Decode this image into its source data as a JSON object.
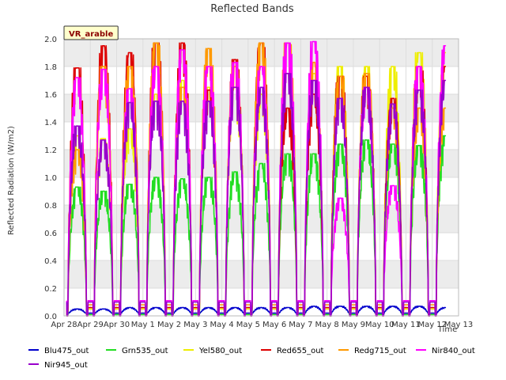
{
  "chart_data": {
    "type": "line",
    "title": "Reflected Bands",
    "xlabel": "Time",
    "ylabel": "Reflected Radiation (W/m2)",
    "ylim": [
      0,
      2.0
    ],
    "xlim": [
      0,
      15
    ],
    "yticks": [
      "0.0",
      "0.2",
      "0.4",
      "0.6",
      "0.8",
      "1.0",
      "1.2",
      "1.4",
      "1.6",
      "1.8",
      "2.0"
    ],
    "xticks": [
      "Apr 28",
      "Apr 29",
      "Apr 30",
      "May 1",
      "May 2",
      "May 3",
      "May 4",
      "May 5",
      "May 6",
      "May 7",
      "May 8",
      "May 9",
      "May 10",
      "May 11",
      "May 12",
      "May 13"
    ],
    "grid": true,
    "legend_position": "bottom",
    "badge": "VR_arable",
    "x_days": [
      0.5,
      1.5,
      2.5,
      3.5,
      4.5,
      5.5,
      6.5,
      7.5,
      8.5,
      9.5,
      10.5,
      11.5,
      12.5,
      13.5,
      14.5
    ],
    "night_values": {
      "Blu475_out": 0.02,
      "Grn535_out": 0.01,
      "Yel580_out": 0.05,
      "Red655_out": 0.06,
      "Redg715_out": 0.08,
      "Nir840_out": 0.11,
      "Nir945_out": 0.1
    },
    "series": [
      {
        "name": "Blu475_out",
        "color": "#0000cc",
        "values": [
          0.05,
          0.05,
          0.06,
          0.06,
          0.06,
          0.06,
          0.06,
          0.06,
          0.06,
          0.07,
          0.07,
          0.07,
          0.07,
          0.07,
          0.06
        ]
      },
      {
        "name": "Grn535_out",
        "color": "#22dd22",
        "values": [
          0.93,
          0.9,
          0.95,
          1.0,
          0.99,
          1.0,
          1.04,
          1.1,
          1.17,
          1.17,
          1.24,
          1.27,
          1.24,
          1.23,
          1.3
        ]
      },
      {
        "name": "Yel580_out",
        "color": "#eeee00",
        "values": [
          1.3,
          1.28,
          1.35,
          1.6,
          1.7,
          1.65,
          1.65,
          1.6,
          1.75,
          1.75,
          1.8,
          1.8,
          1.8,
          1.9,
          1.9
        ]
      },
      {
        "name": "Red655_out",
        "color": "#dd0000",
        "values": [
          1.79,
          1.95,
          1.9,
          1.97,
          1.97,
          1.63,
          1.85,
          1.97,
          1.5,
          1.6,
          1.73,
          1.73,
          1.57,
          1.8,
          1.8
        ]
      },
      {
        "name": "Redg715_out",
        "color": "#ff9900",
        "values": [
          1.2,
          1.8,
          1.8,
          1.97,
          1.65,
          1.93,
          1.8,
          1.97,
          1.97,
          1.83,
          1.73,
          1.75,
          1.5,
          1.5,
          1.5
        ]
      },
      {
        "name": "Nir840_out",
        "color": "#ff00ff",
        "values": [
          1.72,
          1.78,
          1.64,
          1.8,
          1.92,
          1.8,
          1.83,
          1.8,
          1.97,
          1.98,
          0.85,
          1.65,
          0.94,
          1.8,
          1.95
        ]
      },
      {
        "name": "Nir945_out",
        "color": "#9900cc",
        "values": [
          1.37,
          1.27,
          1.54,
          1.55,
          1.55,
          1.55,
          1.65,
          1.65,
          1.75,
          1.7,
          1.57,
          1.65,
          1.53,
          1.63,
          1.7
        ]
      }
    ]
  }
}
